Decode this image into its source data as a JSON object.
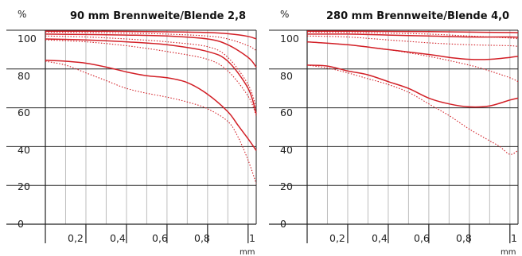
{
  "colors": {
    "curve": "#d21f26",
    "grid": "#bdbdbd",
    "axis": "#222222"
  },
  "chart_data": [
    {
      "type": "line",
      "title": "90 mm Brennweite/Blende 2,8",
      "ylabel": "%",
      "xlabel": "mm",
      "xlim": [
        0,
        1.04
      ],
      "ylim": [
        0,
        100
      ],
      "grid": true,
      "yticks": [
        "0",
        "20",
        "40",
        "60",
        "80",
        "100"
      ],
      "xticks": [
        "0,2",
        "0,4",
        "0,6",
        "0,8",
        "1"
      ],
      "series": [
        {
          "style": "solid",
          "x": [
            0,
            0.2,
            0.4,
            0.6,
            0.8,
            0.9,
            1.0,
            1.04
          ],
          "y": [
            99.5,
            99.5,
            99.4,
            99.2,
            98.8,
            98.2,
            96.8,
            95.5
          ]
        },
        {
          "style": "dotted",
          "x": [
            0,
            0.2,
            0.4,
            0.6,
            0.8,
            0.9,
            1.0,
            1.04
          ],
          "y": [
            99.0,
            98.8,
            98.5,
            98.0,
            97.0,
            95.5,
            92.0,
            89.5
          ]
        },
        {
          "style": "solid",
          "x": [
            0,
            0.2,
            0.4,
            0.6,
            0.8,
            0.9,
            1.0,
            1.04
          ],
          "y": [
            98.0,
            97.8,
            97.5,
            97.0,
            95.5,
            92.5,
            86.0,
            81.0
          ]
        },
        {
          "style": "dotted",
          "x": [
            0,
            0.2,
            0.4,
            0.6,
            0.8,
            0.9,
            1.0,
            1.04
          ],
          "y": [
            97.0,
            96.5,
            95.5,
            94.0,
            91.5,
            86.0,
            72.0,
            60.0
          ]
        },
        {
          "style": "solid",
          "x": [
            0,
            0.2,
            0.4,
            0.6,
            0.8,
            0.9,
            1.0,
            1.04
          ],
          "y": [
            95.5,
            95.0,
            94.0,
            92.5,
            89.0,
            84.0,
            70.0,
            57.0
          ]
        },
        {
          "style": "dotted",
          "x": [
            0,
            0.2,
            0.4,
            0.6,
            0.8,
            0.9,
            1.0,
            1.04
          ],
          "y": [
            95.0,
            94.0,
            92.0,
            89.0,
            85.0,
            79.0,
            66.0,
            56.0
          ]
        },
        {
          "style": "solid",
          "x": [
            0,
            0.1,
            0.2,
            0.3,
            0.4,
            0.5,
            0.6,
            0.7,
            0.8,
            0.9,
            0.95,
            1.0,
            1.04
          ],
          "y": [
            84.5,
            84.0,
            83.0,
            81.0,
            78.5,
            76.5,
            75.5,
            73.0,
            67.0,
            58.0,
            51.0,
            44.0,
            38.0
          ]
        },
        {
          "style": "dotted",
          "x": [
            0,
            0.1,
            0.2,
            0.3,
            0.4,
            0.5,
            0.6,
            0.7,
            0.8,
            0.9,
            0.95,
            1.0,
            1.04
          ],
          "y": [
            84.0,
            82.0,
            78.0,
            74.0,
            70.0,
            67.5,
            65.5,
            63.0,
            59.5,
            53.0,
            45.0,
            33.0,
            21.0
          ]
        }
      ]
    },
    {
      "type": "line",
      "title": "280 mm Brennweite/Blende 4,0",
      "ylabel": "%",
      "xlabel": "mm",
      "xlim": [
        0,
        1.04
      ],
      "ylim": [
        0,
        100
      ],
      "grid": true,
      "yticks": [
        "0",
        "20",
        "40",
        "60",
        "80",
        "100"
      ],
      "xticks": [
        "0,2",
        "0,4",
        "0,6",
        "0,8",
        "1"
      ],
      "series": [
        {
          "style": "solid",
          "x": [
            0,
            0.2,
            0.4,
            0.6,
            0.8,
            1.0,
            1.04
          ],
          "y": [
            99.5,
            99.5,
            99.4,
            99.3,
            99.0,
            98.8,
            98.7
          ]
        },
        {
          "style": "dotted",
          "x": [
            0,
            0.2,
            0.4,
            0.6,
            0.8,
            1.0,
            1.04
          ],
          "y": [
            99.0,
            98.8,
            98.5,
            98.0,
            97.0,
            96.0,
            95.5
          ]
        },
        {
          "style": "solid",
          "x": [
            0,
            0.2,
            0.4,
            0.6,
            0.8,
            1.0,
            1.04
          ],
          "y": [
            98.0,
            98.0,
            97.5,
            97.0,
            96.5,
            96.5,
            96.3
          ]
        },
        {
          "style": "dotted",
          "x": [
            0,
            0.2,
            0.4,
            0.6,
            0.8,
            1.0,
            1.04
          ],
          "y": [
            97.0,
            96.5,
            95.0,
            93.5,
            92.5,
            92.0,
            91.5
          ]
        },
        {
          "style": "solid",
          "x": [
            0,
            0.2,
            0.4,
            0.6,
            0.7,
            0.8,
            0.9,
            1.0,
            1.04
          ],
          "y": [
            94.0,
            92.5,
            90.0,
            87.5,
            86.0,
            85.0,
            85.0,
            86.0,
            86.5
          ]
        },
        {
          "style": "dotted",
          "x": [
            0,
            0.2,
            0.4,
            0.6,
            0.8,
            0.9,
            1.0,
            1.04
          ],
          "y": [
            94.0,
            92.5,
            90.0,
            86.5,
            82.0,
            79.0,
            75.5,
            73.5
          ]
        },
        {
          "style": "solid",
          "x": [
            0,
            0.1,
            0.2,
            0.3,
            0.4,
            0.5,
            0.6,
            0.7,
            0.8,
            0.9,
            1.0,
            1.04
          ],
          "y": [
            82.0,
            81.5,
            79.0,
            77.0,
            73.5,
            70.0,
            65.0,
            62.0,
            60.5,
            61.0,
            64.0,
            65.0
          ]
        },
        {
          "style": "dotted",
          "x": [
            0,
            0.1,
            0.2,
            0.3,
            0.4,
            0.5,
            0.6,
            0.7,
            0.8,
            0.9,
            0.95,
            1.0,
            1.04
          ],
          "y": [
            82.0,
            80.5,
            78.0,
            75.0,
            72.0,
            68.0,
            62.0,
            56.0,
            49.0,
            43.0,
            40.0,
            36.0,
            38.0
          ]
        }
      ]
    }
  ]
}
